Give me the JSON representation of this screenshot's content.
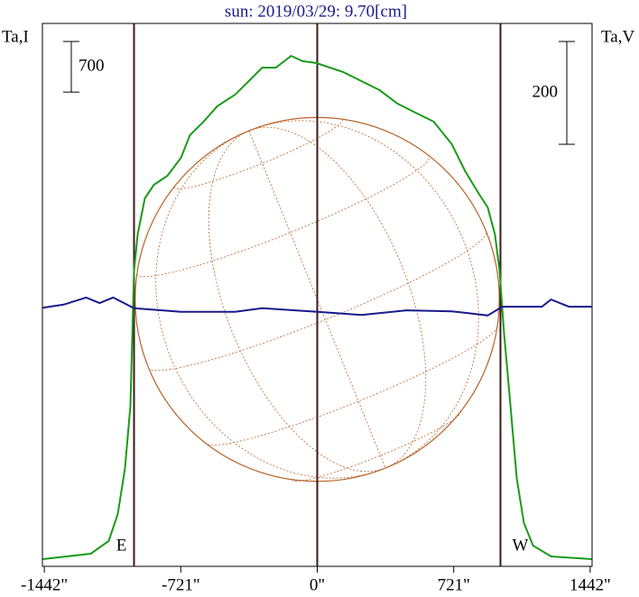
{
  "chart_data": {
    "type": "line",
    "title": "sun: 2019/03/29: 9.70[cm]",
    "y_label": "Ta,I",
    "y2_label": "Ta,V",
    "xlim": [
      -1452,
      1452
    ],
    "ylim": [
      0,
      7500
    ],
    "y2lim": [
      -528,
      528
    ],
    "xticks": [
      {
        "value": -1442,
        "label": "-1442\""
      },
      {
        "value": -721,
        "label": "-721\""
      },
      {
        "value": 0,
        "label": "0\""
      },
      {
        "value": 721,
        "label": "721\""
      },
      {
        "value": 1442,
        "label": "1442\""
      }
    ],
    "scale_bars": [
      {
        "axis": "y",
        "value": 700
      },
      {
        "axis": "y2",
        "value": 200
      }
    ],
    "markers": [
      {
        "x": -968,
        "label": "E"
      },
      {
        "x": 0
      },
      {
        "x": 968,
        "label": "W"
      }
    ],
    "disk_radius": 962,
    "series": [
      {
        "name": "Ta,I",
        "color": "#1a9a1a",
        "axis": "y",
        "x": [
          -1450,
          -1197,
          -1102,
          -1054,
          -1016,
          -987,
          -968,
          -949,
          -911,
          -863,
          -792,
          -720,
          -673,
          -601,
          -529,
          -434,
          -362,
          -291,
          -219,
          -138,
          -76,
          -5,
          67,
          138,
          234,
          329,
          424,
          520,
          615,
          711,
          782,
          854,
          901,
          939,
          963,
          987,
          1021,
          1054,
          1092,
          1140,
          1235,
          1450
        ],
        "values": [
          100,
          174,
          349,
          723,
          1346,
          2218,
          4087,
          4585,
          5084,
          5271,
          5395,
          5644,
          5956,
          6143,
          6355,
          6517,
          6703,
          6890,
          6890,
          7052,
          6978,
          6953,
          6890,
          6828,
          6703,
          6579,
          6392,
          6267,
          6143,
          5832,
          5457,
          5146,
          4959,
          4585,
          4087,
          3215,
          2218,
          1221,
          598,
          287,
          137,
          100
        ]
      },
      {
        "name": "Ta,V",
        "color": "#1a1a8c",
        "axis": "y2",
        "x": [
          -1450,
          -1340,
          -1221,
          -1150,
          -1078,
          -968,
          -720,
          -434,
          -291,
          0,
          234,
          472,
          711,
          901,
          977,
          1187,
          1235,
          1330,
          1450
        ],
        "values": [
          -25,
          -19,
          -5,
          -16,
          -5,
          -26,
          -33,
          -33,
          -26,
          -33,
          -39,
          -30,
          -32,
          -40,
          -23,
          -23,
          -9,
          -23,
          -23
        ]
      }
    ]
  }
}
